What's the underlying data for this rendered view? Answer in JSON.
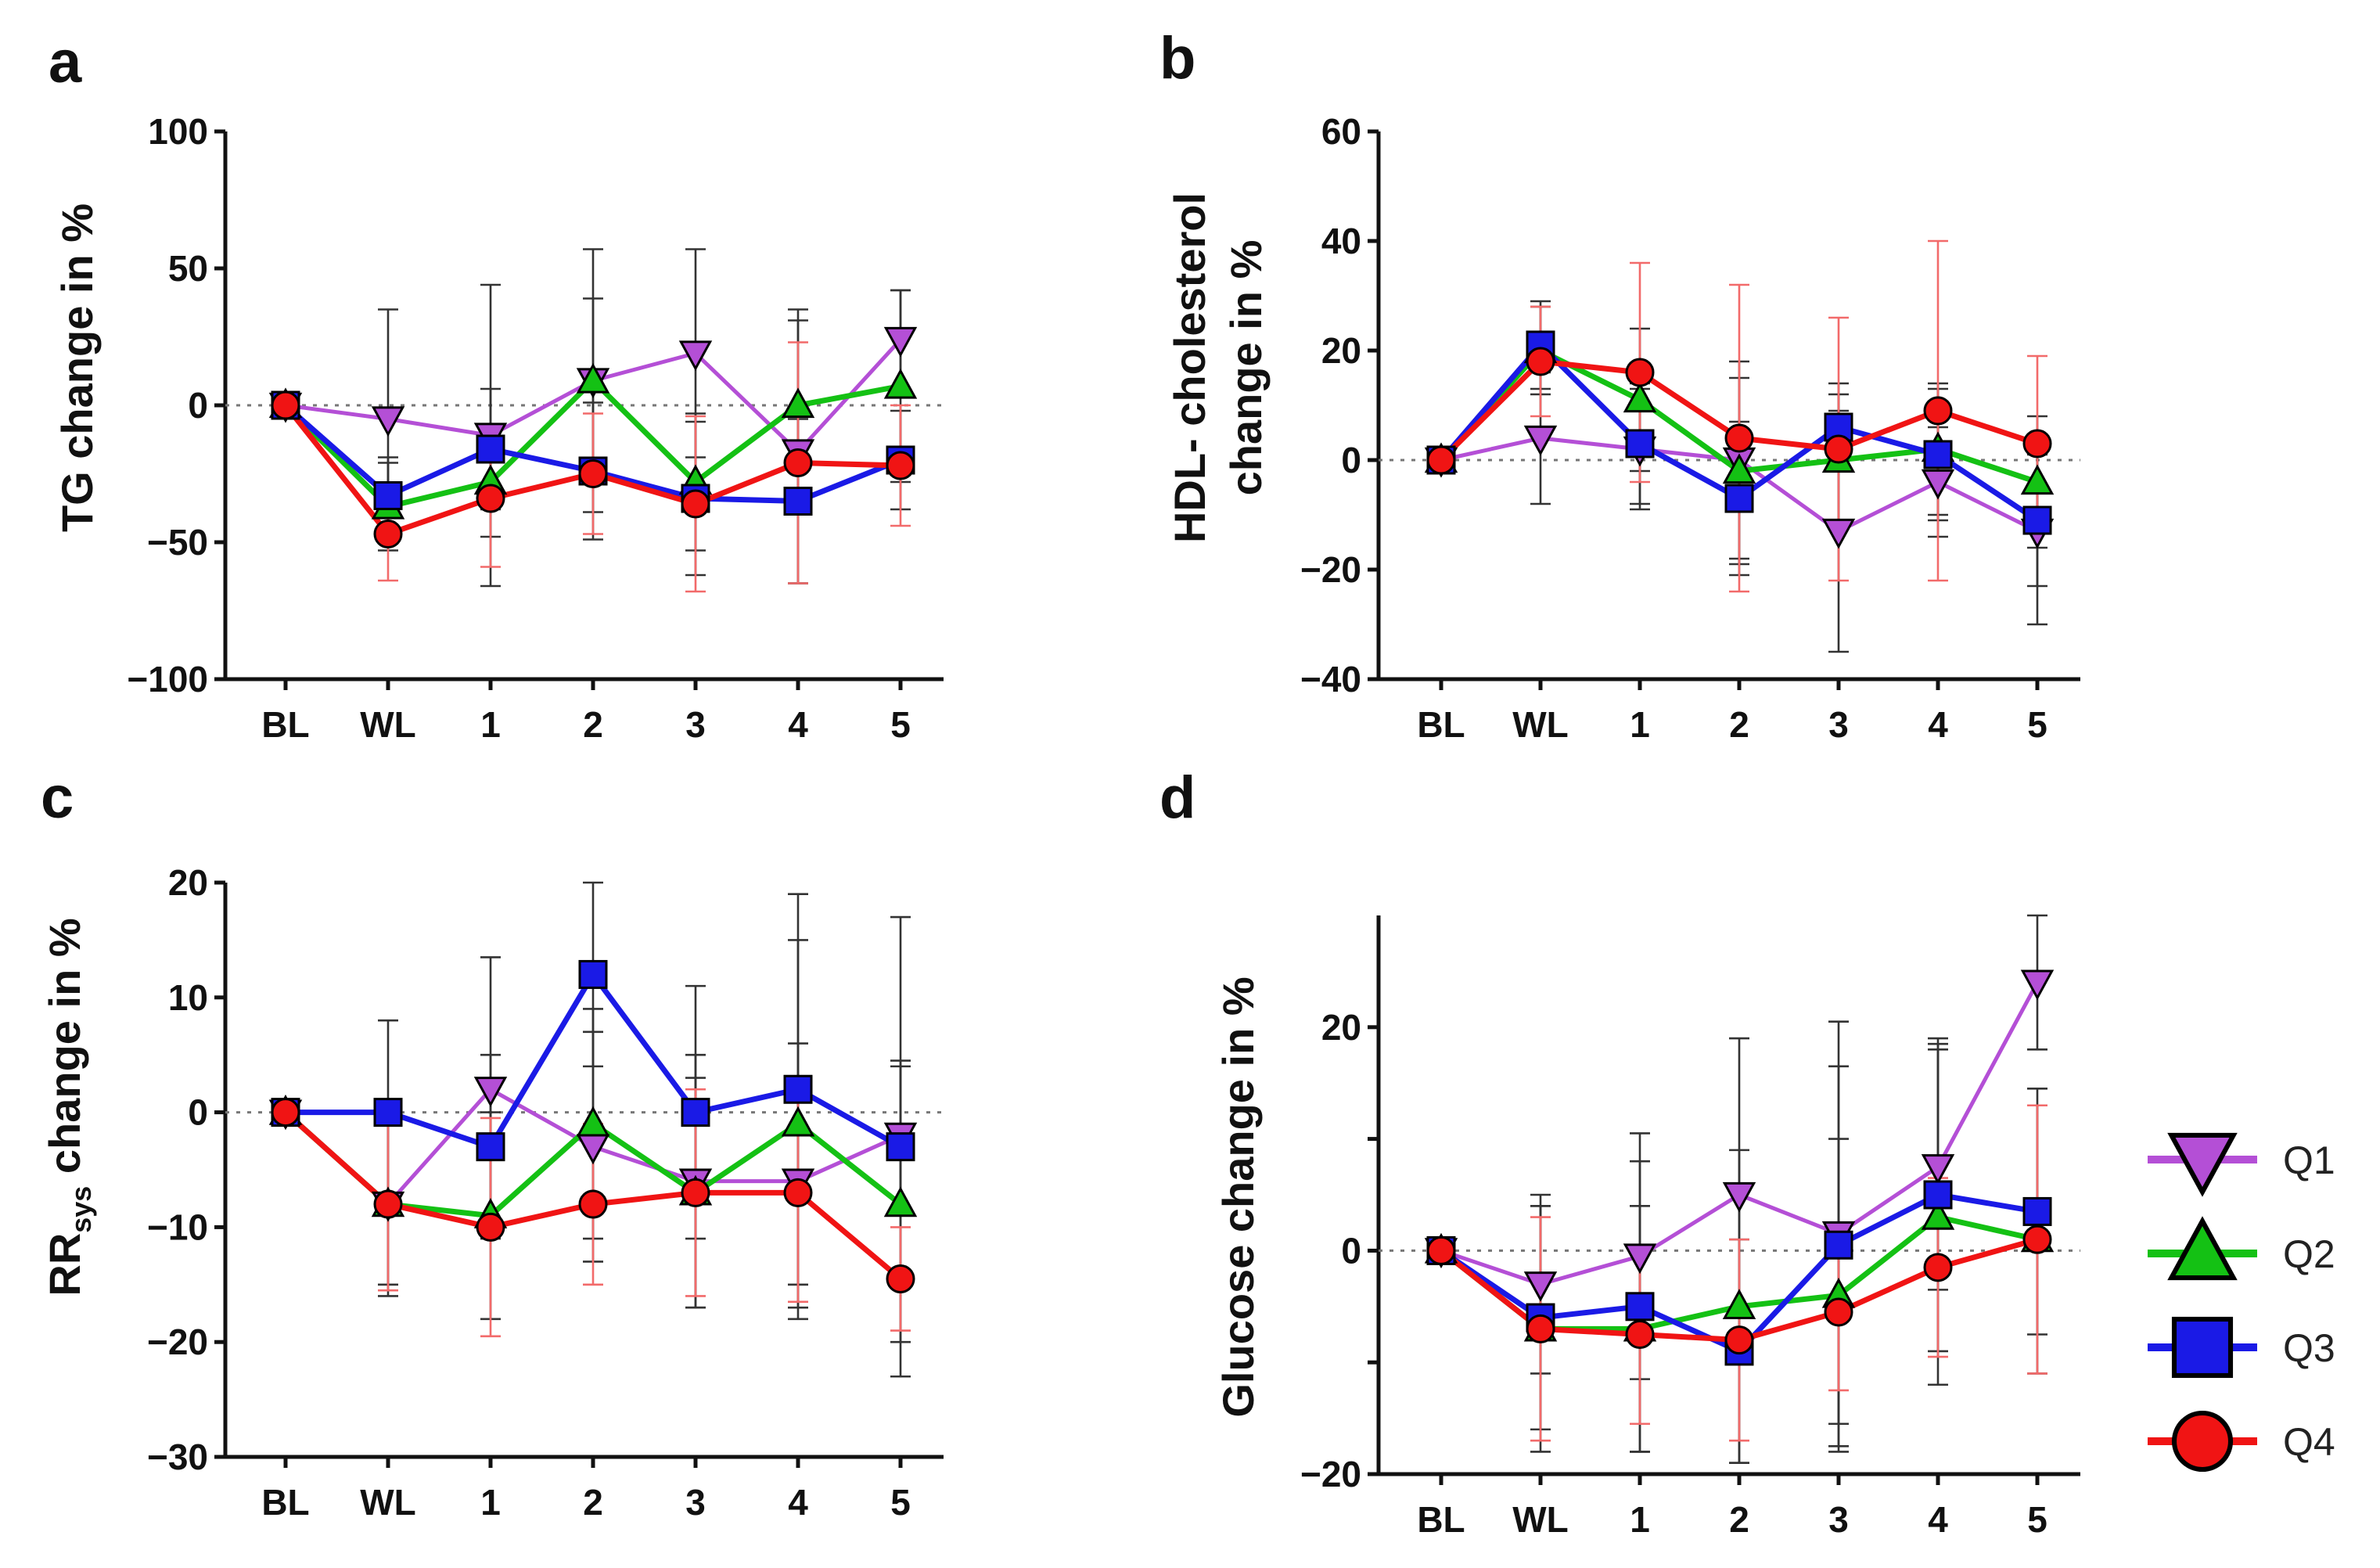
{
  "colors": {
    "Q1": "#b44fd6",
    "Q2": "#14c114",
    "Q3": "#1a1ae6",
    "Q4": "#f01414",
    "err_dark": "#333333",
    "err_red": "#f26a6a"
  },
  "legend": [
    {
      "label": "Q1",
      "marker": "triangle-down"
    },
    {
      "label": "Q2",
      "marker": "triangle-up"
    },
    {
      "label": "Q3",
      "marker": "square"
    },
    {
      "label": "Q4",
      "marker": "circle"
    }
  ],
  "chart_data": [
    {
      "panel": "a",
      "type": "line",
      "ylabel": "TG change in %",
      "ylabel_main": "TG change in %",
      "ylim": [
        -100,
        100
      ],
      "yticks": [
        100,
        50,
        0,
        -50,
        -100
      ],
      "ytick_labels": [
        "100",
        "50",
        "0",
        "−50",
        "−100"
      ],
      "categories": [
        "BL",
        "WL",
        "1",
        "2",
        "3",
        "4",
        "5"
      ],
      "series": [
        {
          "name": "Q1",
          "values": [
            0,
            -5,
            -11,
            9,
            19,
            -17,
            24
          ],
          "err": [
            0,
            40,
            55,
            48,
            38,
            48,
            18
          ],
          "err_color": "dark"
        },
        {
          "name": "Q2",
          "values": [
            0,
            -37,
            -28,
            9,
            -28,
            0,
            7
          ],
          "err": [
            0,
            16,
            20,
            30,
            25,
            35,
            35
          ],
          "err_color": "dark"
        },
        {
          "name": "Q3",
          "values": [
            0,
            -33,
            -16,
            -24,
            -34,
            -35,
            -20
          ],
          "err": [
            0,
            14,
            22,
            25,
            28,
            30,
            18
          ],
          "err_color": "dark"
        },
        {
          "name": "Q4",
          "values": [
            0,
            -47,
            -34,
            -25,
            -36,
            -21,
            -22
          ],
          "err": [
            0,
            17,
            25,
            22,
            32,
            44,
            22
          ],
          "err_color": "red"
        }
      ]
    },
    {
      "panel": "b",
      "type": "line",
      "ylabel": "HDL- cholesterol change in %",
      "ylabel_line1": "HDL- cholesterol",
      "ylabel_line2": "change in %",
      "ylim": [
        -40,
        60
      ],
      "yticks": [
        60,
        40,
        20,
        0,
        -20,
        -40
      ],
      "ytick_labels": [
        "60",
        "40",
        "20",
        "0",
        "−20",
        "−40"
      ],
      "categories": [
        "BL",
        "WL",
        "1",
        "2",
        "3",
        "4",
        "5"
      ],
      "series": [
        {
          "name": "Q1",
          "values": [
            0,
            4,
            2,
            0,
            -13,
            -4,
            -13
          ],
          "err": [
            0,
            12,
            11,
            18,
            22,
            10,
            17
          ],
          "err_color": "dark"
        },
        {
          "name": "Q2",
          "values": [
            0,
            20,
            11,
            -2,
            0,
            2,
            -4
          ],
          "err": [
            0,
            8,
            13,
            17,
            12,
            12,
            12
          ],
          "err_color": "dark"
        },
        {
          "name": "Q3",
          "values": [
            0,
            21,
            3,
            -7,
            6,
            1,
            -11
          ],
          "err": [
            0,
            8,
            11,
            14,
            8,
            12,
            12
          ],
          "err_color": "dark"
        },
        {
          "name": "Q4",
          "values": [
            0,
            18,
            16,
            4,
            2,
            9,
            3
          ],
          "err": [
            0,
            10,
            20,
            28,
            24,
            31,
            16
          ],
          "err_color": "red"
        }
      ]
    },
    {
      "panel": "c",
      "type": "line",
      "ylabel": "RRsys change in %",
      "ylabel_base": "RR",
      "ylabel_sub": "sys",
      "ylabel_rest": " change in  %",
      "ylim": [
        -30,
        20
      ],
      "yticks": [
        20,
        10,
        0,
        -10,
        -20,
        -30
      ],
      "ytick_labels": [
        "20",
        "10",
        "0",
        "−10",
        "−20",
        "−30"
      ],
      "categories": [
        "BL",
        "WL",
        "1",
        "2",
        "3",
        "4",
        "5"
      ],
      "series": [
        {
          "name": "Q1",
          "values": [
            0,
            -8,
            2,
            -3,
            -6,
            -6,
            -2
          ],
          "err": [
            0,
            8,
            11.5,
            10,
            11,
            12,
            6.5
          ],
          "err_color": "dark"
        },
        {
          "name": "Q2",
          "values": [
            0,
            -8,
            -9,
            -1,
            -7,
            -1,
            -8
          ],
          "err": [
            0,
            7,
            9,
            10,
            10,
            16,
            12
          ],
          "err_color": "dark"
        },
        {
          "name": "Q3",
          "values": [
            0,
            0,
            -3,
            12,
            0,
            2,
            -3
          ],
          "err": [
            0,
            8,
            8,
            8,
            11,
            17,
            20
          ],
          "err_color": "dark"
        },
        {
          "name": "Q4",
          "values": [
            0,
            -8,
            -10,
            -8,
            -7,
            -7,
            -14.5
          ],
          "err": [
            0,
            7.5,
            9.5,
            7,
            9,
            9.5,
            4.5
          ],
          "err_color": "red"
        }
      ]
    },
    {
      "panel": "d",
      "type": "line",
      "ylabel": "Glucose change in %",
      "ylim": [
        -20,
        30
      ],
      "ytop_data": 30,
      "yticks": [
        20,
        10,
        0,
        -10,
        -20
      ],
      "ytick_labels": [
        "20",
        "",
        "0",
        "",
        "−20"
      ],
      "categories": [
        "BL",
        "WL",
        "1",
        "2",
        "3",
        "4",
        "5"
      ],
      "series": [
        {
          "name": "Q1",
          "values": [
            0,
            -3,
            -0.5,
            5,
            1.5,
            7.5,
            24
          ],
          "err": [
            0,
            8,
            11,
            14,
            19,
            11,
            6
          ],
          "err_color": "dark"
        },
        {
          "name": "Q2",
          "values": [
            0,
            -7,
            -7,
            -5,
            -4,
            3,
            1
          ],
          "err": [
            0,
            11,
            11,
            14,
            14,
            15,
            12
          ],
          "err_color": "dark"
        },
        {
          "name": "Q3",
          "values": [
            0,
            -6,
            -5,
            -9,
            0.5,
            5,
            3.5
          ],
          "err": [
            0,
            10,
            13,
            10,
            16,
            14,
            11
          ],
          "err_color": "dark"
        },
        {
          "name": "Q4",
          "values": [
            0,
            -7,
            -7.5,
            -8,
            -5.5,
            -1.5,
            1
          ],
          "err": [
            0,
            10,
            8,
            9,
            7,
            8,
            12
          ],
          "err_color": "red"
        }
      ]
    }
  ]
}
